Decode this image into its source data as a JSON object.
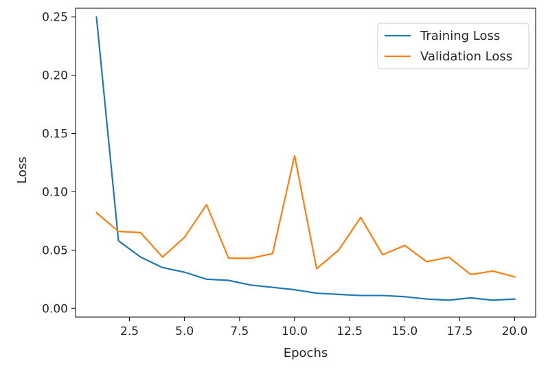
{
  "chart_data": {
    "type": "line",
    "title": "",
    "xlabel": "Epochs",
    "ylabel": "Loss",
    "xlim": [
      0.05,
      20.95
    ],
    "ylim": [
      -0.0075,
      0.2575
    ],
    "xticks": [
      2.5,
      5.0,
      7.5,
      10.0,
      12.5,
      15.0,
      17.5,
      20.0
    ],
    "xtick_labels": [
      "2.5",
      "5.0",
      "7.5",
      "10.0",
      "12.5",
      "15.0",
      "17.5",
      "20.0"
    ],
    "yticks": [
      0.0,
      0.05,
      0.1,
      0.15,
      0.2,
      0.25
    ],
    "ytick_labels": [
      "0.00",
      "0.05",
      "0.10",
      "0.15",
      "0.20",
      "0.25"
    ],
    "grid": false,
    "legend_position": "top-right",
    "x": [
      1,
      2,
      3,
      4,
      5,
      6,
      7,
      8,
      9,
      10,
      11,
      12,
      13,
      14,
      15,
      16,
      17,
      18,
      19,
      20
    ],
    "series": [
      {
        "name": "Training Loss",
        "color": "#1f77b4",
        "values": [
          0.25,
          0.058,
          0.044,
          0.035,
          0.031,
          0.025,
          0.024,
          0.02,
          0.018,
          0.016,
          0.013,
          0.012,
          0.011,
          0.011,
          0.01,
          0.008,
          0.007,
          0.009,
          0.007,
          0.008
        ]
      },
      {
        "name": "Validation Loss",
        "color": "#ff7f0e",
        "values": [
          0.082,
          0.066,
          0.065,
          0.044,
          0.061,
          0.089,
          0.043,
          0.043,
          0.047,
          0.131,
          0.034,
          0.05,
          0.078,
          0.046,
          0.054,
          0.04,
          0.044,
          0.029,
          0.032,
          0.027
        ]
      }
    ]
  }
}
